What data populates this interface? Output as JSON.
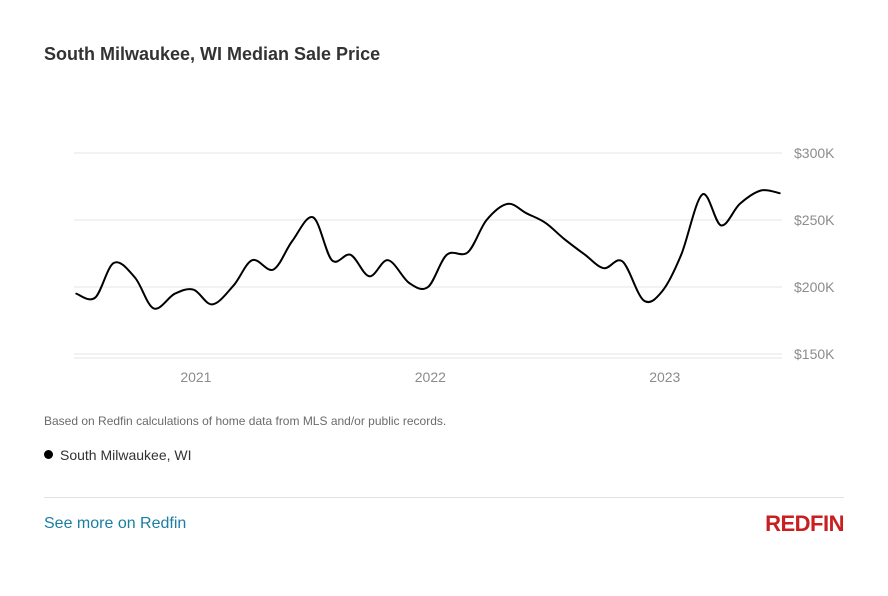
{
  "title": "South Milwaukee, WI Median Sale Price",
  "footnote": "Based on Redfin calculations of home data from MLS and/or public records.",
  "legend": {
    "label": "South Milwaukee, WI",
    "color": "#000000"
  },
  "link": {
    "label": "See more on Redfin",
    "color": "#1a7ea3"
  },
  "logo": {
    "text": "REDFIN",
    "color": "#c82021"
  },
  "chart_data": {
    "type": "line",
    "title": "South Milwaukee, WI Median Sale Price",
    "xlabel": "",
    "ylabel": "",
    "ylim": [
      150000,
      300000
    ],
    "xlim": [
      2020.48,
      2023.5
    ],
    "grid": true,
    "legend_position": "bottom-left",
    "x_ticks": [
      2021,
      2022,
      2023
    ],
    "x_tick_labels": [
      "2021",
      "2022",
      "2023"
    ],
    "y_ticks": [
      150000,
      200000,
      250000,
      300000
    ],
    "y_tick_labels": [
      "$150K",
      "$200K",
      "$250K",
      "$300K"
    ],
    "series": [
      {
        "name": "South Milwaukee, WI",
        "color": "#000000",
        "x": [
          2020.49,
          2020.57,
          2020.65,
          2020.74,
          2020.82,
          2020.91,
          2020.99,
          2021.07,
          2021.16,
          2021.24,
          2021.33,
          2021.41,
          2021.5,
          2021.58,
          2021.66,
          2021.74,
          2021.82,
          2021.91,
          2021.99,
          2022.07,
          2022.16,
          2022.24,
          2022.33,
          2022.41,
          2022.49,
          2022.57,
          2022.66,
          2022.74,
          2022.82,
          2022.91,
          2022.99,
          2023.07,
          2023.16,
          2023.24,
          2023.32,
          2023.41,
          2023.49
        ],
        "values": [
          195000,
          192000,
          218000,
          207000,
          184000,
          195000,
          198000,
          187000,
          201000,
          220000,
          213000,
          234000,
          252000,
          220000,
          224000,
          208000,
          220000,
          203000,
          200000,
          224000,
          226000,
          250000,
          262000,
          255000,
          248000,
          236000,
          224000,
          214000,
          219000,
          190000,
          197000,
          224000,
          269000,
          246000,
          262000,
          272000,
          270000
        ]
      }
    ]
  }
}
